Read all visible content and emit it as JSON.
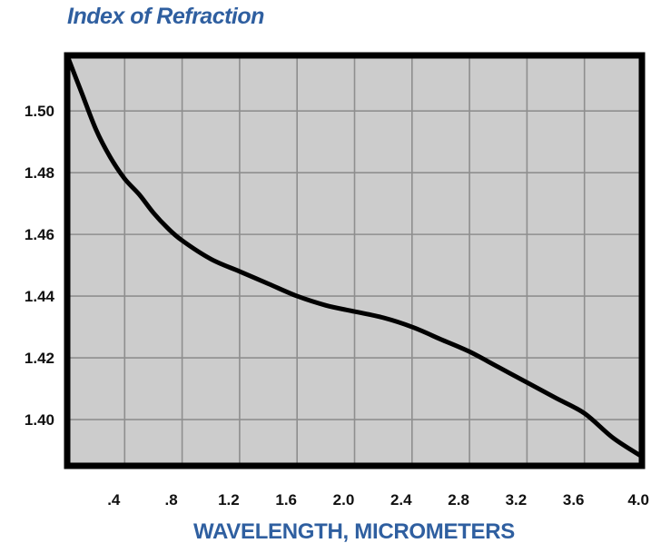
{
  "chart_data": {
    "type": "line",
    "title": "Index of Refraction",
    "xlabel": "WAVELENGTH, MICROMETERS",
    "ylabel": "",
    "xlim": [
      0.0,
      4.0
    ],
    "ylim": [
      1.385,
      1.518
    ],
    "x_ticks": [
      0.4,
      0.8,
      1.2,
      1.6,
      2.0,
      2.4,
      2.8,
      3.2,
      3.6,
      4.0
    ],
    "x_tick_labels": [
      ".4",
      ".8",
      "1.2",
      "1.6",
      "2.0",
      "2.4",
      "2.8",
      "3.2",
      "3.6",
      "4.0"
    ],
    "y_ticks": [
      1.4,
      1.42,
      1.44,
      1.46,
      1.48,
      1.5
    ],
    "y_tick_labels": [
      "1.40",
      "1.42",
      "1.44",
      "1.46",
      "1.48",
      "1.50"
    ],
    "grid": true,
    "colors": {
      "title": "#2f5fa0",
      "xlabel": "#2f5fa0",
      "plot_bg": "#cccccc",
      "grid": "#8e8e8e",
      "line": "#000000",
      "frame": "#000000"
    },
    "series": [
      {
        "x": [
          0.0,
          0.1,
          0.2,
          0.3,
          0.4,
          0.5,
          0.6,
          0.7,
          0.8,
          1.0,
          1.2,
          1.4,
          1.6,
          1.8,
          2.0,
          2.2,
          2.4,
          2.6,
          2.8,
          3.0,
          3.2,
          3.4,
          3.6,
          3.8,
          4.0
        ],
        "y": [
          1.518,
          1.506,
          1.494,
          1.485,
          1.478,
          1.473,
          1.467,
          1.462,
          1.458,
          1.452,
          1.448,
          1.444,
          1.44,
          1.437,
          1.435,
          1.433,
          1.43,
          1.426,
          1.422,
          1.417,
          1.412,
          1.407,
          1.402,
          1.394,
          1.388
        ]
      }
    ]
  }
}
